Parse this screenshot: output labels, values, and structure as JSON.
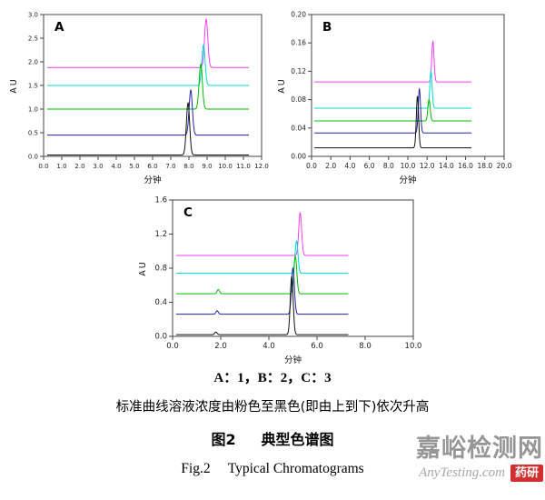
{
  "figure": {
    "series_note": "A：1，B：2，C：3",
    "concentration_note": "标准曲线溶液浓度由粉色至黑色(即由上到下)依次升高",
    "caption_zh": "图2     典型色谱图",
    "caption_en": "Fig.2     Typical Chromatograms"
  },
  "watermark": {
    "site_name": "嘉峪检测网",
    "site_url": "AnyTesting.com",
    "badge_text": "药研",
    "badge_color": "#d03030"
  },
  "chart_data": [
    {
      "type": "line",
      "panel_label": "A",
      "xlabel": "分钟",
      "ylabel": "AU",
      "xlim": [
        0,
        12
      ],
      "xtick_step": 1,
      "xtick_decimals": 1,
      "ylim": [
        0,
        3
      ],
      "ytick_step": 0.5,
      "ytick_decimals": 1,
      "trace_range": [
        0.2,
        11.3
      ],
      "peak_width": 0.09,
      "tick_font": 7,
      "grid": false,
      "series": [
        {
          "name": "pink",
          "color": "#f23ef2",
          "baseline": 1.88,
          "peaks": [
            {
              "x": 8.95,
              "height": 1.02
            }
          ]
        },
        {
          "name": "cyan",
          "color": "#00d8d8",
          "baseline": 1.5,
          "peaks": [
            {
              "x": 8.8,
              "height": 0.85
            }
          ]
        },
        {
          "name": "green",
          "color": "#00bb00",
          "baseline": 1.0,
          "peaks": [
            {
              "x": 8.65,
              "height": 0.95
            }
          ]
        },
        {
          "name": "blue",
          "color": "#2222aa",
          "baseline": 0.45,
          "peaks": [
            {
              "x": 8.1,
              "height": 0.95
            }
          ]
        },
        {
          "name": "black",
          "color": "#111111",
          "baseline": 0.03,
          "peaks": [
            {
              "x": 7.95,
              "height": 1.1
            }
          ]
        }
      ]
    },
    {
      "type": "line",
      "panel_label": "B",
      "xlabel": "分钟",
      "ylabel": "AU",
      "xlim": [
        0,
        20
      ],
      "xtick_step": 2,
      "xtick_decimals": 1,
      "ylim": [
        0,
        0.2
      ],
      "ytick_step": 0.04,
      "ytick_decimals": 2,
      "trace_range": [
        0.3,
        16.6
      ],
      "peak_width": 0.12,
      "tick_font": 7.5,
      "grid": false,
      "series": [
        {
          "name": "pink",
          "color": "#f23ef2",
          "baseline": 0.105,
          "peaks": [
            {
              "x": 12.6,
              "height": 0.057
            }
          ]
        },
        {
          "name": "cyan",
          "color": "#00d8d8",
          "baseline": 0.068,
          "peaks": [
            {
              "x": 12.4,
              "height": 0.052
            }
          ]
        },
        {
          "name": "green",
          "color": "#00bb00",
          "baseline": 0.05,
          "peaks": [
            {
              "x": 12.2,
              "height": 0.03
            }
          ]
        },
        {
          "name": "blue",
          "color": "#2222aa",
          "baseline": 0.033,
          "peaks": [
            {
              "x": 11.2,
              "height": 0.062
            }
          ]
        },
        {
          "name": "black",
          "color": "#111111",
          "baseline": 0.012,
          "peaks": [
            {
              "x": 11.0,
              "height": 0.073
            }
          ]
        }
      ]
    },
    {
      "type": "line",
      "panel_label": "C",
      "xlabel": "分钟",
      "ylabel": "AU",
      "xlim": [
        0,
        10
      ],
      "xtick_step": 2,
      "xtick_decimals": 1,
      "ylim": [
        0,
        1.6
      ],
      "ytick_step": 0.4,
      "ytick_decimals": 1,
      "trace_range": [
        0.15,
        7.3
      ],
      "peak_width": 0.06,
      "tick_font": 8.5,
      "grid": false,
      "series": [
        {
          "name": "pink",
          "color": "#f23ef2",
          "baseline": 0.95,
          "peaks": [
            {
              "x": 5.3,
              "height": 0.5
            }
          ]
        },
        {
          "name": "cyan",
          "color": "#00d8d8",
          "baseline": 0.74,
          "peaks": [
            {
              "x": 5.15,
              "height": 0.38
            }
          ]
        },
        {
          "name": "green",
          "color": "#00bb00",
          "baseline": 0.5,
          "peaks": [
            {
              "x": 5.1,
              "height": 0.44
            },
            {
              "x": 1.9,
              "height": 0.05,
              "width": 0.05
            }
          ]
        },
        {
          "name": "blue",
          "color": "#2222aa",
          "baseline": 0.26,
          "peaks": [
            {
              "x": 5.0,
              "height": 0.54
            },
            {
              "x": 1.85,
              "height": 0.04,
              "width": 0.05
            }
          ]
        },
        {
          "name": "black",
          "color": "#111111",
          "baseline": 0.02,
          "peaks": [
            {
              "x": 4.95,
              "height": 0.68
            },
            {
              "x": 1.8,
              "height": 0.03,
              "width": 0.05
            }
          ]
        }
      ]
    }
  ]
}
